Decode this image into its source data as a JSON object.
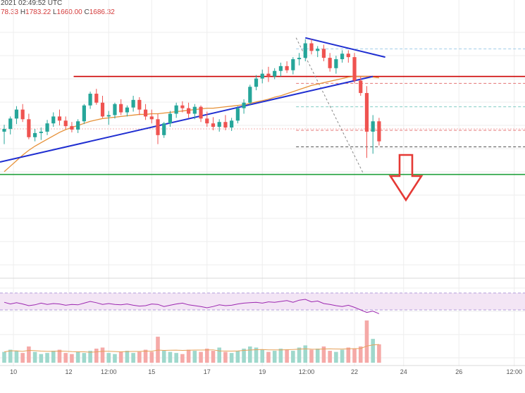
{
  "header": {
    "time_text": "2021 02:49:52 UTC",
    "ohlc": [
      {
        "label": "",
        "value": "78.33"
      },
      {
        "label": "H",
        "value": "1783.22"
      },
      {
        "label": "L",
        "value": "1660.00"
      },
      {
        "label": "C",
        "value": "1686.32"
      }
    ]
  },
  "colors": {
    "up": "#26a69a",
    "down": "#ef5350",
    "ma_fast": "#e69138",
    "trendline": "#1f2ed1",
    "resistance": "#cc0000",
    "support": "#21a03c",
    "rsi": "#9c27b0",
    "rsi_band": "#f3e5f5",
    "arrow": "#e53935",
    "grid": "#eeeeee"
  },
  "chart_data": {
    "type": "candlestick",
    "title": "",
    "xlabel": "",
    "ylabel": "",
    "ylim": [
      1592,
      1890
    ],
    "grid": true,
    "x_tick_labels": [
      "10",
      "12",
      "12:00",
      "15",
      "17",
      "19",
      "12:00",
      "22",
      "24",
      "26",
      "12:00"
    ],
    "candles": [
      [
        1738,
        1748,
        1720,
        1742
      ],
      [
        1742,
        1760,
        1734,
        1757
      ],
      [
        1757,
        1775,
        1749,
        1770
      ],
      [
        1770,
        1778,
        1752,
        1756
      ],
      [
        1756,
        1764,
        1727,
        1730
      ],
      [
        1730,
        1742,
        1724,
        1736
      ],
      [
        1736,
        1744,
        1726,
        1738
      ],
      [
        1738,
        1755,
        1733,
        1750
      ],
      [
        1750,
        1766,
        1745,
        1760
      ],
      [
        1760,
        1770,
        1747,
        1754
      ],
      [
        1754,
        1760,
        1742,
        1746
      ],
      [
        1746,
        1752,
        1737,
        1741
      ],
      [
        1741,
        1756,
        1736,
        1753
      ],
      [
        1753,
        1778,
        1749,
        1776
      ],
      [
        1776,
        1796,
        1771,
        1793
      ],
      [
        1793,
        1800,
        1777,
        1780
      ],
      [
        1780,
        1790,
        1758,
        1760
      ],
      [
        1760,
        1768,
        1748,
        1762
      ],
      [
        1762,
        1780,
        1757,
        1778
      ],
      [
        1778,
        1785,
        1762,
        1766
      ],
      [
        1766,
        1776,
        1760,
        1773
      ],
      [
        1773,
        1790,
        1767,
        1784
      ],
      [
        1784,
        1788,
        1762,
        1770
      ],
      [
        1770,
        1778,
        1755,
        1760
      ],
      [
        1760,
        1770,
        1750,
        1756
      ],
      [
        1756,
        1764,
        1720,
        1733
      ],
      [
        1733,
        1752,
        1729,
        1750
      ],
      [
        1750,
        1768,
        1745,
        1764
      ],
      [
        1764,
        1780,
        1758,
        1776
      ],
      [
        1776,
        1782,
        1766,
        1772
      ],
      [
        1772,
        1780,
        1758,
        1764
      ],
      [
        1764,
        1778,
        1756,
        1774
      ],
      [
        1774,
        1776,
        1752,
        1757
      ],
      [
        1757,
        1767,
        1745,
        1750
      ],
      [
        1750,
        1759,
        1740,
        1745
      ],
      [
        1745,
        1756,
        1738,
        1752
      ],
      [
        1752,
        1762,
        1740,
        1744
      ],
      [
        1744,
        1758,
        1739,
        1754
      ],
      [
        1754,
        1775,
        1750,
        1772
      ],
      [
        1772,
        1785,
        1764,
        1780
      ],
      [
        1780,
        1806,
        1776,
        1803
      ],
      [
        1803,
        1820,
        1798,
        1815
      ],
      [
        1815,
        1828,
        1808,
        1822
      ],
      [
        1822,
        1832,
        1810,
        1818
      ],
      [
        1818,
        1830,
        1814,
        1826
      ],
      [
        1826,
        1838,
        1818,
        1833
      ],
      [
        1833,
        1840,
        1823,
        1827
      ],
      [
        1827,
        1846,
        1821,
        1843
      ],
      [
        1843,
        1852,
        1834,
        1845
      ],
      [
        1845,
        1872,
        1840,
        1866
      ],
      [
        1866,
        1872,
        1850,
        1855
      ],
      [
        1855,
        1862,
        1846,
        1858
      ],
      [
        1858,
        1864,
        1840,
        1845
      ],
      [
        1845,
        1852,
        1825,
        1830
      ],
      [
        1830,
        1848,
        1822,
        1843
      ],
      [
        1843,
        1856,
        1838,
        1851
      ],
      [
        1851,
        1856,
        1838,
        1846
      ],
      [
        1846,
        1852,
        1808,
        1812
      ],
      [
        1812,
        1818,
        1790,
        1794
      ],
      [
        1794,
        1804,
        1700,
        1738
      ],
      [
        1738,
        1762,
        1706,
        1753
      ],
      [
        1753,
        1758,
        1718,
        1724
      ]
    ],
    "ma_fast": [
      1680,
      1688,
      1696,
      1704,
      1711,
      1717,
      1722,
      1727,
      1732,
      1737,
      1741,
      1744,
      1747,
      1750,
      1753,
      1755,
      1757,
      1758,
      1759,
      1760,
      1761,
      1762,
      1763,
      1763,
      1764,
      1764,
      1765,
      1766,
      1767,
      1768,
      1769,
      1770,
      1771,
      1772,
      1772,
      1773,
      1774,
      1775,
      1776,
      1777,
      1779,
      1781,
      1783,
      1785,
      1788,
      1790,
      1793,
      1796,
      1799,
      1802,
      1805,
      1807,
      1809,
      1811,
      1813,
      1815,
      1817,
      1818,
      1818,
      1818,
      1817,
      1816
    ],
    "blue_trendline": [
      [
        0,
        1694
      ],
      [
        60,
        1818
      ]
    ],
    "blue_descending_line": [
      [
        49,
        1874
      ],
      [
        62,
        1846
      ]
    ],
    "resistance_level": 1818,
    "support_level": 1676,
    "target_levels": [
      1858,
      1808,
      1774,
      1716
    ],
    "rsi": [
      48,
      44,
      47,
      44,
      40,
      42,
      46,
      43,
      45,
      44,
      41,
      43,
      42,
      46,
      50,
      47,
      43,
      45,
      43,
      42,
      44,
      41,
      39,
      40,
      44,
      43,
      38,
      41,
      44,
      46,
      42,
      40,
      38,
      35,
      38,
      42,
      40,
      41,
      44,
      46,
      47,
      48,
      46,
      49,
      48,
      50,
      52,
      48,
      53,
      55,
      49,
      51,
      45,
      43,
      40,
      38,
      41,
      36,
      30,
      24,
      27,
      21
    ],
    "volume": [
      20,
      24,
      22,
      18,
      30,
      20,
      16,
      18,
      22,
      24,
      18,
      16,
      20,
      18,
      22,
      26,
      28,
      18,
      16,
      20,
      22,
      18,
      20,
      24,
      20,
      48,
      22,
      20,
      18,
      16,
      24,
      22,
      20,
      26,
      22,
      28,
      20,
      18,
      22,
      26,
      30,
      28,
      24,
      20,
      22,
      26,
      24,
      22,
      28,
      32,
      24,
      26,
      30,
      22,
      20,
      24,
      28,
      26,
      30,
      78,
      44,
      34
    ]
  }
}
